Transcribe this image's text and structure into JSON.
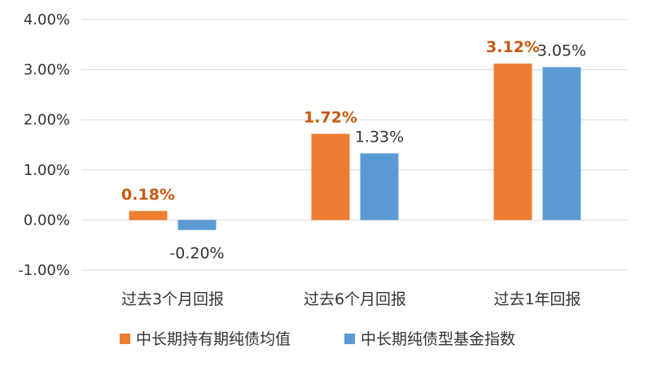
{
  "chart_data": {
    "type": "bar",
    "categories": [
      "过去3个月回报",
      "过去6个月回报",
      "过去1年回报"
    ],
    "series": [
      {
        "name": "中长期持有期纯债均值",
        "values": [
          0.18,
          1.72,
          3.12
        ],
        "labels": [
          "0.18%",
          "1.72%",
          "3.12%"
        ],
        "color": "#ED7D31",
        "label_color": "#C55A11"
      },
      {
        "name": "中长期纯债型基金指数",
        "values": [
          -0.2,
          1.33,
          3.05
        ],
        "labels": [
          "-0.20%",
          "1.33%",
          "3.05%"
        ],
        "color": "#5B9BD5",
        "label_color": "#333333"
      }
    ],
    "y_ticks": [
      4,
      3,
      2,
      1,
      0,
      -1
    ],
    "y_tick_labels": [
      "4.00%",
      "3.00%",
      "2.00%",
      "1.00%",
      "0.00%",
      "-1.00%"
    ],
    "ylim": [
      -1,
      4
    ],
    "grid": true,
    "legend_position": "bottom-center"
  }
}
